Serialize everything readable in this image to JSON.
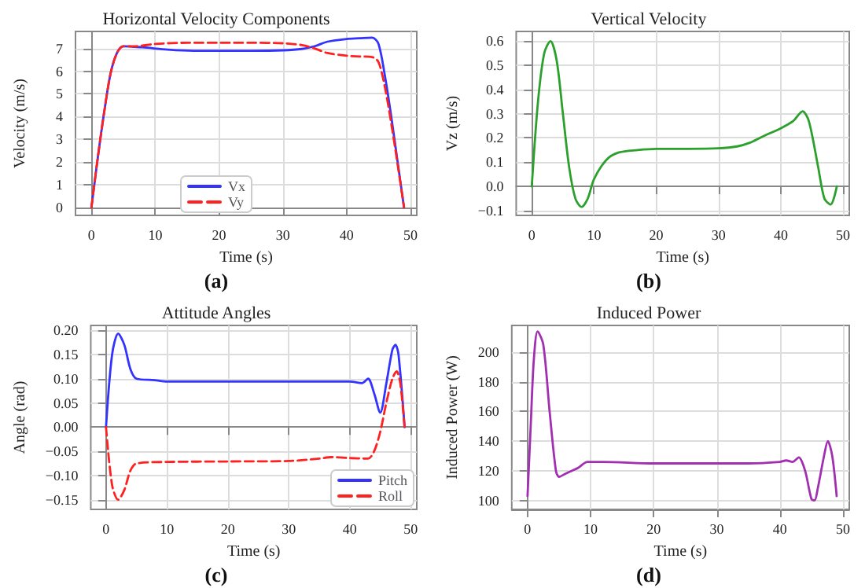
{
  "chart_data": [
    {
      "type": "line",
      "title": "Horizontal Velocity Components",
      "xlabel": "Time (s)",
      "ylabel": "Velocity (m/s)",
      "annotations": [
        "(a)"
      ],
      "xlim": [
        -2.5,
        51
      ],
      "xticks": [
        0,
        10,
        20,
        30,
        40,
        50
      ],
      "ylim": [
        -0.35,
        7.75
      ],
      "yticks": [
        0,
        1,
        2,
        3,
        4,
        5,
        6,
        7
      ],
      "grid": true,
      "legend": "bottom",
      "marker": "none",
      "series": [
        {
          "name": "Vx",
          "color": "#3333ff",
          "line_style": "solid",
          "x": [
            0,
            1,
            2,
            3,
            4,
            5,
            8,
            12,
            16,
            20,
            25,
            30,
            33,
            35,
            37,
            40,
            42,
            44,
            45,
            46,
            47,
            48,
            49
          ],
          "values": [
            0,
            2.2,
            4.2,
            5.9,
            6.8,
            7.1,
            7.05,
            6.95,
            6.9,
            6.9,
            6.9,
            6.92,
            6.98,
            7.1,
            7.3,
            7.42,
            7.45,
            7.48,
            7.2,
            5.8,
            4,
            2,
            0
          ]
        },
        {
          "name": "Vy",
          "color": "#ff2020",
          "line_style": "dashed",
          "x": [
            0,
            1,
            2,
            3,
            4,
            5,
            7,
            10,
            15,
            20,
            25,
            30,
            33,
            35,
            37,
            40,
            42,
            44,
            45,
            46,
            47,
            48,
            49
          ],
          "values": [
            0,
            2.2,
            4.2,
            5.9,
            6.8,
            7.1,
            7.1,
            7.2,
            7.25,
            7.25,
            7.25,
            7.23,
            7.15,
            7.0,
            6.8,
            6.68,
            6.65,
            6.62,
            6.4,
            5.3,
            3.7,
            1.9,
            0
          ]
        }
      ]
    },
    {
      "type": "line",
      "title": "Vertical Velocity",
      "xlabel": "Time (s)",
      "ylabel": "Vz (m/s)",
      "annotations": [
        "(b)"
      ],
      "xlim": [
        -2.5,
        51
      ],
      "xticks": [
        0,
        10,
        20,
        30,
        40,
        50
      ],
      "ylim": [
        -0.12,
        0.64
      ],
      "yticks": [
        {
          "value": -0.1,
          "label": "−0.1"
        },
        {
          "value": 0,
          "label": "0.0"
        },
        0.1,
        0.2,
        0.3,
        0.4,
        0.5,
        0.6
      ],
      "grid": true,
      "marker": "none",
      "series": [
        {
          "color": "#2ca02c",
          "line_style": "solid",
          "x": [
            0,
            1,
            2,
            3,
            4,
            5,
            6,
            7,
            8,
            9,
            10,
            12,
            14,
            17,
            20,
            25,
            30,
            33,
            35,
            37,
            40,
            42,
            43.5,
            44.5,
            46,
            47,
            48,
            49
          ],
          "values": [
            0,
            0.35,
            0.55,
            0.6,
            0.52,
            0.3,
            0.08,
            -0.05,
            -0.085,
            -0.05,
            0.03,
            0.11,
            0.14,
            0.15,
            0.155,
            0.155,
            0.157,
            0.165,
            0.18,
            0.205,
            0.24,
            0.27,
            0.31,
            0.27,
            0.08,
            -0.05,
            -0.075,
            0
          ]
        }
      ]
    },
    {
      "type": "line",
      "title": "Attitude Angles",
      "xlabel": "Time (s)",
      "ylabel": "Angle (rad)",
      "annotations": [
        "(c)"
      ],
      "xlim": [
        -2.5,
        51
      ],
      "xticks": [
        0,
        10,
        20,
        30,
        40,
        50
      ],
      "ylim": [
        -0.17,
        0.21
      ],
      "yticks": [
        {
          "value": -0.15,
          "label": "−0.15"
        },
        {
          "value": -0.1,
          "label": "−0.10"
        },
        {
          "value": -0.05,
          "label": "−0.05"
        },
        {
          "value": 0,
          "label": "0.00"
        },
        0.05,
        {
          "value": 0.1,
          "label": "0.10"
        },
        0.15,
        {
          "value": 0.2,
          "label": "0.20"
        }
      ],
      "grid": true,
      "legend": "bottom right",
      "marker": "none",
      "series": [
        {
          "name": "Pitch",
          "color": "#3333ff",
          "line_style": "solid",
          "x": [
            0,
            1,
            2,
            3,
            4,
            5,
            8,
            10,
            20,
            30,
            40,
            42,
            43,
            44,
            45,
            46,
            47,
            47.5,
            48,
            49
          ],
          "values": [
            0,
            0.15,
            0.193,
            0.17,
            0.12,
            0.1,
            0.097,
            0.094,
            0.094,
            0.094,
            0.094,
            0.091,
            0.1,
            0.07,
            0.03,
            0.09,
            0.16,
            0.17,
            0.15,
            0
          ]
        },
        {
          "name": "Roll",
          "color": "#ff2020",
          "line_style": "dashed",
          "x": [
            0,
            1,
            2,
            3,
            4,
            5,
            10,
            20,
            30,
            35,
            37,
            40,
            43,
            44,
            45,
            46,
            47,
            47.7,
            48.3,
            49
          ],
          "values": [
            0,
            -0.12,
            -0.15,
            -0.13,
            -0.09,
            -0.075,
            -0.072,
            -0.071,
            -0.07,
            -0.065,
            -0.062,
            -0.064,
            -0.065,
            -0.05,
            -0.01,
            0.05,
            0.1,
            0.115,
            0.09,
            0
          ]
        }
      ]
    },
    {
      "type": "line",
      "title": "Induced Power",
      "xlabel": "Time (s)",
      "ylabel": "Induced Power (W)",
      "annotations": [
        "(d)"
      ],
      "xlim": [
        -2.5,
        51
      ],
      "xticks": [
        0,
        10,
        20,
        30,
        40,
        50
      ],
      "ylim": [
        94,
        218
      ],
      "yticks": [
        100,
        120,
        140,
        160,
        180,
        200
      ],
      "grid": true,
      "marker": "none",
      "series": [
        {
          "color": "#a030b0",
          "line_style": "solid",
          "x": [
            0,
            0.5,
            1,
            1.6,
            2.5,
            3.5,
            4.5,
            5,
            6,
            7,
            8,
            9.5,
            12,
            20,
            30,
            35,
            40,
            41,
            42,
            43,
            44,
            45,
            45.5,
            46,
            47,
            47.6,
            48.3,
            49
          ],
          "values": [
            103,
            150,
            195,
            214,
            205,
            160,
            120,
            116,
            118,
            120,
            122,
            126,
            126,
            125,
            125,
            125,
            126,
            127,
            126,
            129,
            120,
            101,
            100,
            108,
            130,
            140,
            130,
            103
          ]
        }
      ]
    }
  ]
}
